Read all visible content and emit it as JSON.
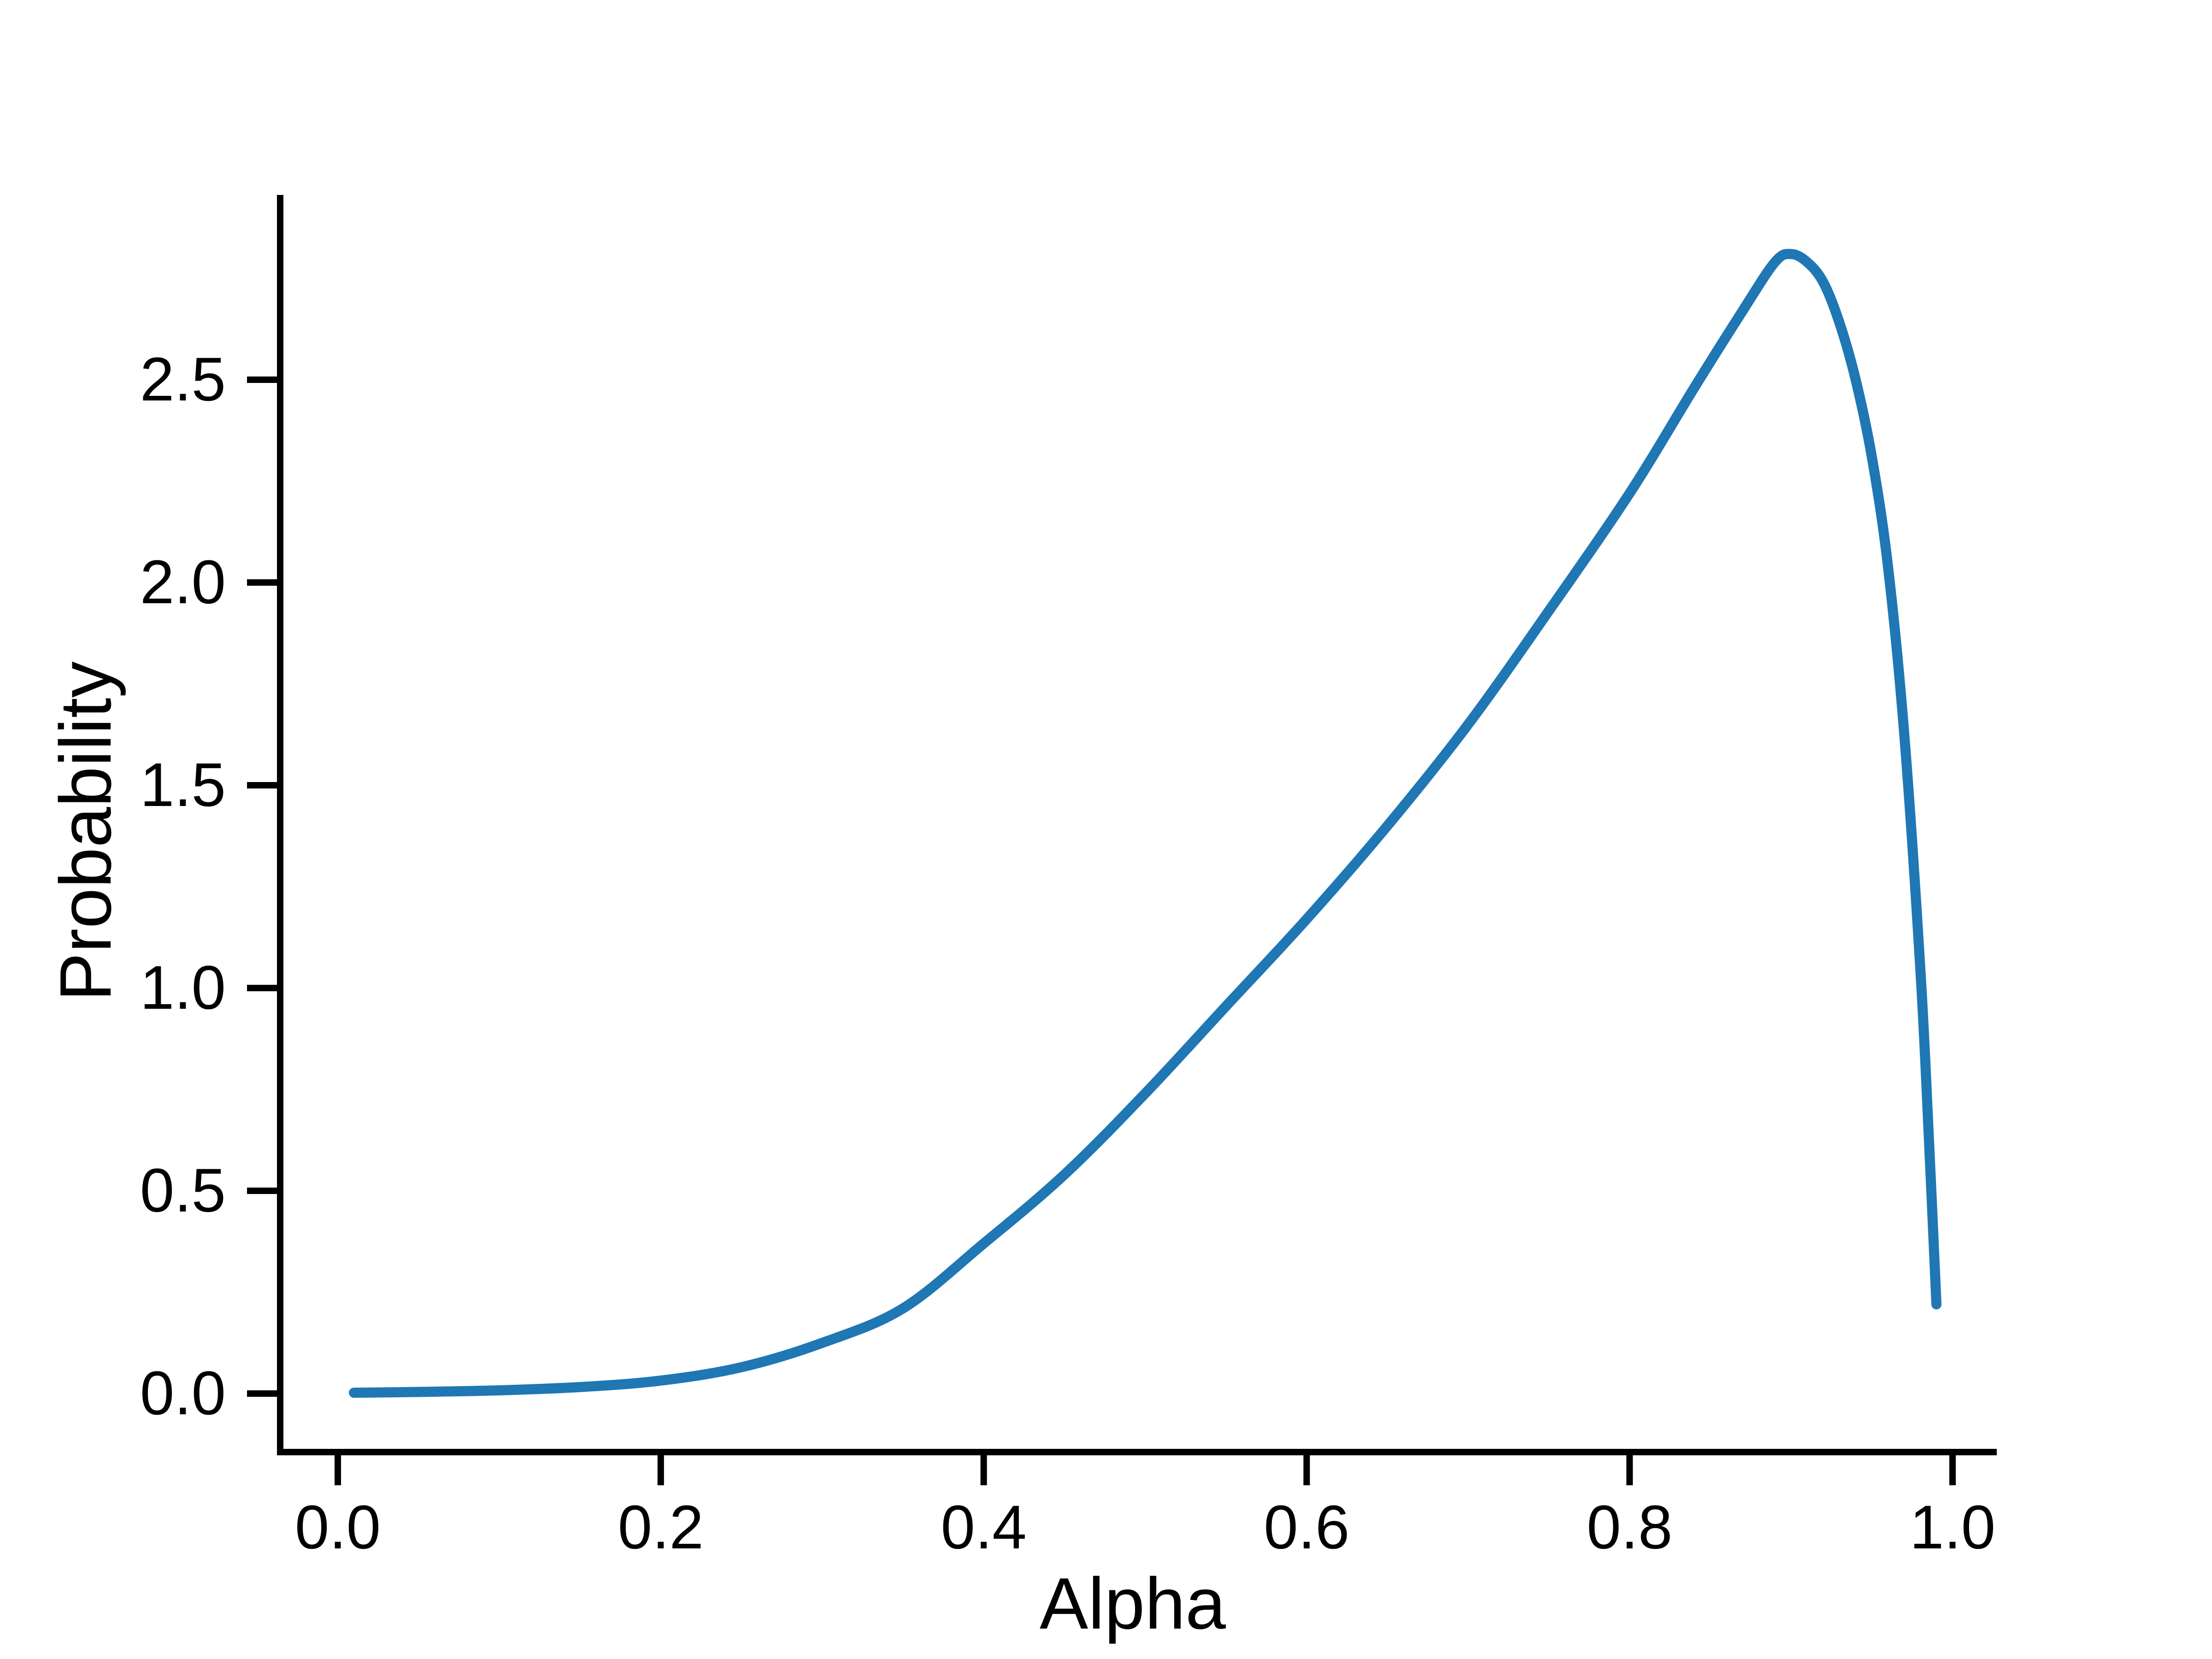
{
  "chart_data": {
    "type": "line",
    "title": "",
    "xlabel": "Alpha",
    "ylabel": "Probability",
    "x_ticks": [
      0.0,
      0.2,
      0.4,
      0.6,
      0.8,
      1.0
    ],
    "x_tick_labels": [
      "0.0",
      "0.2",
      "0.4",
      "0.6",
      "0.8",
      "1.0"
    ],
    "y_ticks": [
      0.0,
      0.5,
      1.0,
      1.5,
      2.0,
      2.5
    ],
    "y_tick_labels": [
      "0.0",
      "0.5",
      "1.0",
      "1.5",
      "2.0",
      "2.5"
    ],
    "xlim": [
      -0.04,
      1.04
    ],
    "ylim": [
      -0.14,
      2.95
    ],
    "grid": false,
    "legend": null,
    "line_color": "#1f77b4",
    "axis_color": "#000000",
    "background_color": "#ffffff",
    "series": [
      {
        "x": [
          0.01,
          0.05,
          0.1,
          0.15,
          0.2,
          0.25,
          0.3,
          0.35,
          0.4,
          0.45,
          0.5,
          0.55,
          0.6,
          0.65,
          0.7,
          0.75,
          0.8,
          0.84,
          0.87,
          0.89,
          0.9,
          0.91,
          0.92,
          0.93,
          0.94,
          0.95,
          0.96,
          0.97,
          0.98,
          0.985,
          0.99
        ],
        "y": [
          0.002,
          0.004,
          0.008,
          0.016,
          0.032,
          0.065,
          0.125,
          0.21,
          0.37,
          0.54,
          0.74,
          0.955,
          1.17,
          1.4,
          1.65,
          1.93,
          2.22,
          2.48,
          2.67,
          2.79,
          2.81,
          2.79,
          2.74,
          2.64,
          2.5,
          2.31,
          2.04,
          1.63,
          1.05,
          0.66,
          0.22
        ]
      }
    ]
  }
}
